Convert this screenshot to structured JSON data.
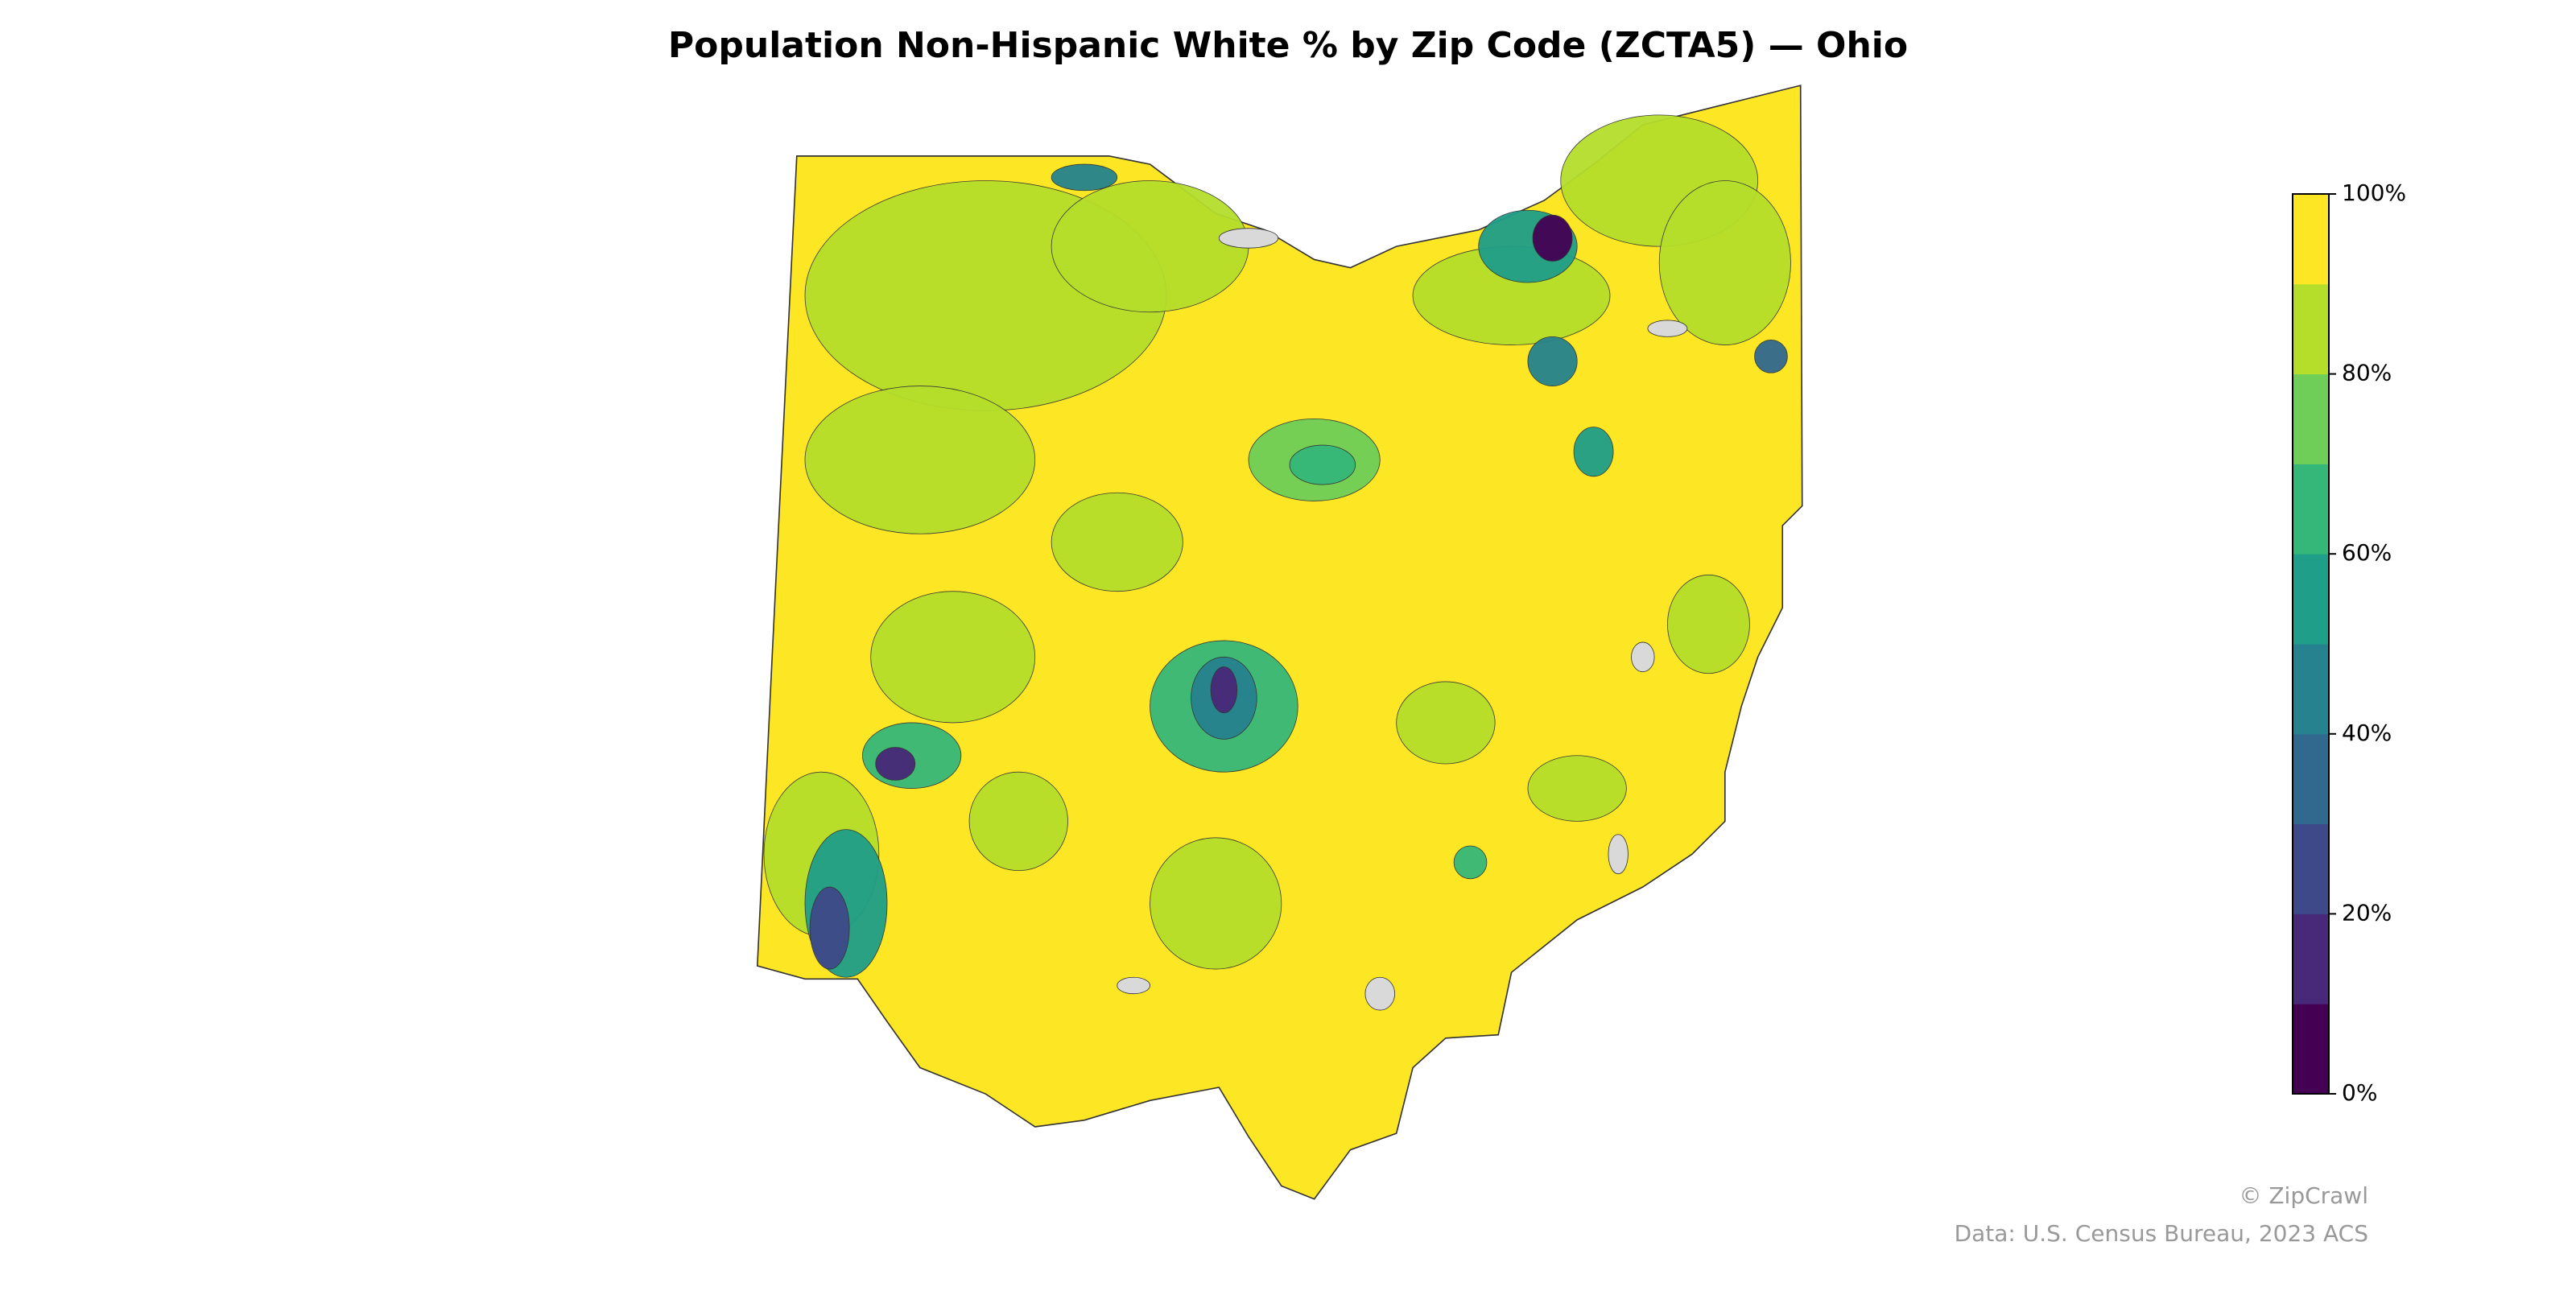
{
  "chart_data": {
    "type": "choropleth",
    "title": "Population Non-Hispanic White % by Zip Code (ZCTA5) — Ohio",
    "colors": [
      "#440154",
      "#482878",
      "#3e4989",
      "#31688e",
      "#26828e",
      "#1f9e89",
      "#35b779",
      "#6ece58",
      "#b5de2b",
      "#fde725"
    ],
    "no_data_color": "#d9d9d9",
    "ylim": [
      0,
      100
    ],
    "yticks": [
      {
        "value": 0,
        "label": "0%"
      },
      {
        "value": 20,
        "label": "20%"
      },
      {
        "value": 40,
        "label": "40%"
      },
      {
        "value": 60,
        "label": "60%"
      },
      {
        "value": 80,
        "label": "80%"
      },
      {
        "value": 100,
        "label": "100%"
      }
    ],
    "credit": "© ZipCrawl",
    "source": "Data: U.S. Census Bureau, 2023 ACS"
  }
}
